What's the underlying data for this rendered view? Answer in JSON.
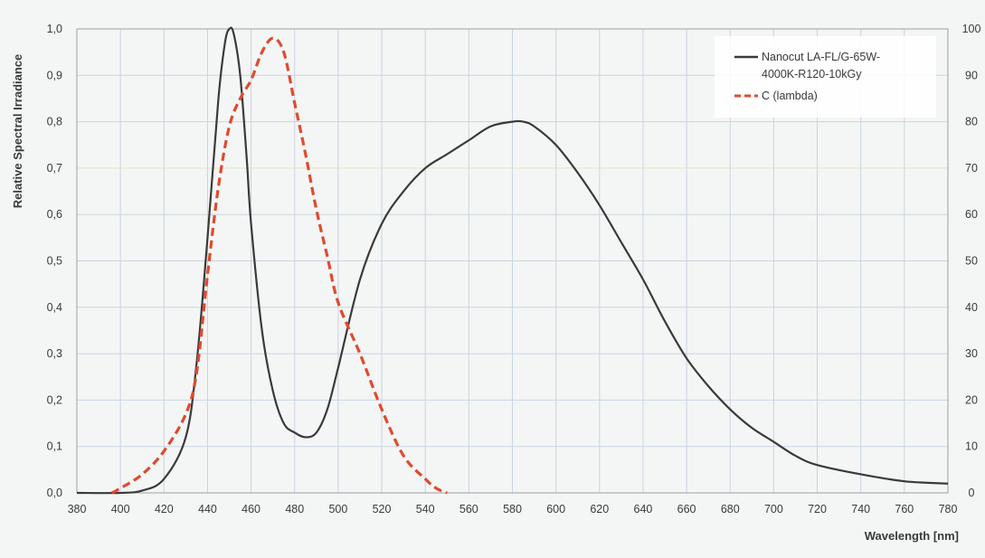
{
  "chart_data": {
    "type": "line",
    "xlabel": "Wavelength [nm]",
    "ylabel": "Relative Spectral Irradiance",
    "xlim": [
      380,
      780
    ],
    "ylim": [
      0,
      1
    ],
    "y2lim": [
      0,
      100
    ],
    "x_ticks": [
      "380",
      "400",
      "420",
      "440",
      "460",
      "480",
      "500",
      "520",
      "540",
      "560",
      "580",
      "600",
      "620",
      "640",
      "660",
      "680",
      "700",
      "720",
      "740",
      "760",
      "780"
    ],
    "y_ticks": [
      "0,0",
      "0,1",
      "0,2",
      "0,3",
      "0,4",
      "0,5",
      "0,6",
      "0,7",
      "0,8",
      "0,9",
      "1,0"
    ],
    "y2_ticks": [
      "0",
      "10",
      "20",
      "30",
      "40",
      "50",
      "60",
      "70",
      "80",
      "90",
      "100"
    ],
    "grid": true,
    "legend_position": "top-right",
    "series": [
      {
        "name": "Nanocut LA-FL/G-65W-4000K-R120-10kGy",
        "color": "#3a3a3a",
        "style": "solid",
        "axis": "left",
        "x": [
          380,
          400,
          410,
          420,
          430,
          435,
          440,
          445,
          448,
          450,
          452,
          455,
          458,
          460,
          465,
          470,
          475,
          480,
          485,
          490,
          495,
          500,
          510,
          520,
          530,
          540,
          550,
          560,
          570,
          580,
          585,
          590,
          600,
          610,
          620,
          630,
          640,
          650,
          660,
          670,
          680,
          690,
          700,
          710,
          720,
          740,
          760,
          780
        ],
        "y": [
          0,
          0,
          0.005,
          0.03,
          0.12,
          0.28,
          0.55,
          0.85,
          0.97,
          1.0,
          0.99,
          0.9,
          0.72,
          0.58,
          0.35,
          0.22,
          0.15,
          0.13,
          0.12,
          0.13,
          0.18,
          0.27,
          0.46,
          0.58,
          0.65,
          0.7,
          0.73,
          0.76,
          0.79,
          0.8,
          0.8,
          0.79,
          0.75,
          0.69,
          0.62,
          0.54,
          0.46,
          0.37,
          0.29,
          0.23,
          0.18,
          0.14,
          0.11,
          0.08,
          0.06,
          0.04,
          0.025,
          0.02
        ]
      },
      {
        "name": "C (lambda)",
        "color": "#e04a2f",
        "style": "dashed",
        "axis": "left",
        "x": [
          396,
          400,
          410,
          420,
          430,
          435,
          440,
          445,
          450,
          455,
          460,
          465,
          470,
          475,
          480,
          485,
          490,
          495,
          500,
          510,
          520,
          530,
          540,
          545,
          550
        ],
        "y": [
          0,
          0.01,
          0.04,
          0.09,
          0.17,
          0.26,
          0.47,
          0.66,
          0.79,
          0.85,
          0.89,
          0.95,
          0.98,
          0.95,
          0.84,
          0.73,
          0.61,
          0.51,
          0.41,
          0.3,
          0.18,
          0.08,
          0.03,
          0.01,
          0
        ]
      }
    ]
  }
}
